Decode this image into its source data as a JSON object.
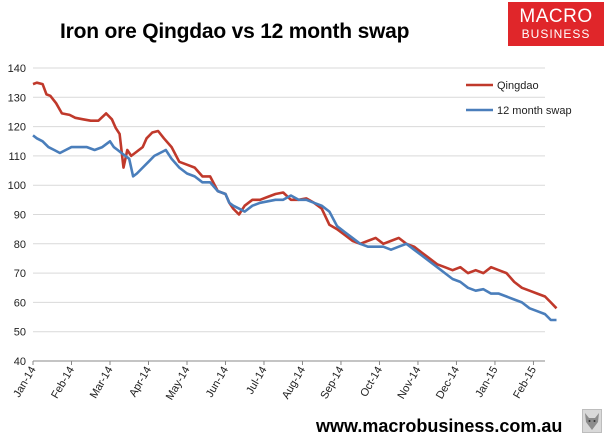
{
  "header": {
    "title": "Iron ore Qingdao vs 12 month swap"
  },
  "logo": {
    "line1": "MACRO",
    "line2": "BUSINESS",
    "color": "#e0262a"
  },
  "footer": {
    "url": "www.macrobusiness.com.au"
  },
  "colors": {
    "qingdao": "#c0392b",
    "swap": "#4a7ebb",
    "grid": "#d9d9d9",
    "axis": "#888888"
  },
  "chart_data": {
    "type": "line",
    "title": "Iron ore Qingdao vs 12 month swap",
    "xlabel": "",
    "ylabel": "",
    "ylim": [
      40,
      140
    ],
    "yticks": [
      40,
      50,
      60,
      70,
      80,
      90,
      100,
      110,
      120,
      130,
      140
    ],
    "categories": [
      "Jan-14",
      "Feb-14",
      "Mar-14",
      "Apr-14",
      "May-14",
      "Jun-14",
      "Jul-14",
      "Aug-14",
      "Sep-14",
      "Oct-14",
      "Nov-14",
      "Dec-14",
      "Jan-15",
      "Feb-15"
    ],
    "legend_position": "top-right",
    "series": [
      {
        "name": "Qingdao",
        "x": [
          0,
          0.1,
          0.25,
          0.35,
          0.45,
          0.6,
          0.75,
          0.95,
          1.1,
          1.3,
          1.5,
          1.7,
          1.9,
          2.05,
          2.15,
          2.25,
          2.35,
          2.45,
          2.55,
          2.65,
          2.75,
          2.85,
          2.95,
          3.1,
          3.25,
          3.4,
          3.6,
          3.8,
          4,
          4.2,
          4.4,
          4.6,
          4.8,
          5,
          5.1,
          5.2,
          5.35,
          5.5,
          5.7,
          5.9,
          6.1,
          6.3,
          6.5,
          6.7,
          6.9,
          7.1,
          7.3,
          7.5,
          7.7,
          7.9,
          8.1,
          8.3,
          8.5,
          8.7,
          8.9,
          9.1,
          9.3,
          9.5,
          9.7,
          9.9,
          10.1,
          10.3,
          10.5,
          10.7,
          10.9,
          11.1,
          11.3,
          11.5,
          11.7,
          11.9,
          12.1,
          12.3,
          12.5,
          12.7,
          12.9,
          13.1,
          13.3,
          13.45,
          13.6
        ],
        "values": [
          134.5,
          135,
          134.5,
          131,
          130.5,
          128,
          124.5,
          124,
          123,
          122.5,
          122,
          122,
          124.5,
          122.5,
          119.5,
          117.5,
          106,
          112,
          110,
          111,
          112,
          113,
          116,
          118,
          118.5,
          116,
          113,
          108,
          107,
          106,
          103,
          103,
          98,
          97,
          94,
          92,
          90,
          93,
          95,
          95,
          96,
          97,
          97.5,
          95,
          95,
          95.5,
          94,
          92,
          86.5,
          85,
          83,
          81,
          80,
          81,
          82,
          80,
          81,
          82,
          80,
          79,
          77,
          75,
          73,
          72,
          71,
          72,
          70,
          71,
          70,
          72,
          71,
          70,
          67,
          65,
          64,
          63,
          62,
          60,
          58
        ]
      },
      {
        "name": "12 month swap",
        "x": [
          0,
          0.1,
          0.25,
          0.4,
          0.55,
          0.7,
          0.85,
          1,
          1.2,
          1.4,
          1.6,
          1.8,
          2,
          2.1,
          2.2,
          2.3,
          2.4,
          2.5,
          2.6,
          2.7,
          2.85,
          3,
          3.15,
          3.3,
          3.45,
          3.6,
          3.8,
          4,
          4.2,
          4.4,
          4.6,
          4.8,
          5,
          5.1,
          5.2,
          5.35,
          5.5,
          5.7,
          5.9,
          6.1,
          6.3,
          6.5,
          6.7,
          6.9,
          7.1,
          7.3,
          7.5,
          7.7,
          7.9,
          8.1,
          8.3,
          8.5,
          8.7,
          8.9,
          9.1,
          9.3,
          9.5,
          9.7,
          9.9,
          10.1,
          10.3,
          10.5,
          10.7,
          10.9,
          11.1,
          11.3,
          11.5,
          11.7,
          11.9,
          12.1,
          12.3,
          12.5,
          12.7,
          12.9,
          13.1,
          13.3,
          13.45,
          13.6
        ],
        "values": [
          117,
          116,
          115,
          113,
          112,
          111,
          112,
          113,
          113,
          113,
          112,
          113,
          115,
          113,
          112,
          111,
          110,
          109,
          103,
          104,
          106,
          108,
          110,
          111,
          112,
          109,
          106,
          104,
          103,
          101,
          101,
          98,
          97,
          94,
          93,
          92,
          91,
          93,
          94,
          94.5,
          95,
          95,
          96.5,
          95,
          95,
          94,
          93,
          91,
          86,
          84,
          82,
          80,
          79,
          79,
          79,
          78,
          79,
          80,
          78,
          76,
          74,
          72,
          70,
          68,
          67,
          65,
          64,
          64.5,
          63,
          63,
          62,
          61,
          60,
          58,
          57,
          56,
          54,
          54
        ]
      }
    ]
  }
}
